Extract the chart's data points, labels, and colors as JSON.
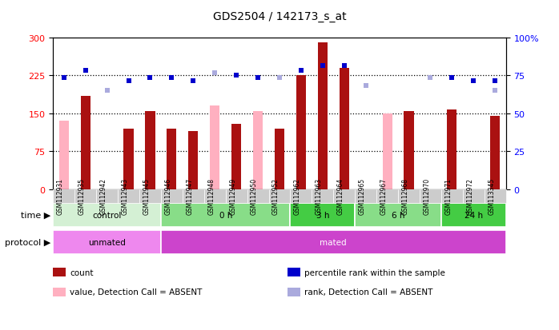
{
  "title": "GDS2504 / 142173_s_at",
  "samples": [
    "GSM112931",
    "GSM112935",
    "GSM112942",
    "GSM112943",
    "GSM112945",
    "GSM112946",
    "GSM112947",
    "GSM112948",
    "GSM112949",
    "GSM112950",
    "GSM112952",
    "GSM112962",
    "GSM112963",
    "GSM112964",
    "GSM112965",
    "GSM112967",
    "GSM112968",
    "GSM112970",
    "GSM112971",
    "GSM112972",
    "GSM113345"
  ],
  "count_vals": [
    null,
    185,
    null,
    120,
    155,
    120,
    115,
    null,
    130,
    null,
    120,
    225,
    290,
    240,
    null,
    null,
    155,
    null,
    158,
    null,
    145
  ],
  "count_absent_vals": [
    135,
    null,
    null,
    null,
    null,
    null,
    null,
    165,
    null,
    155,
    null,
    null,
    null,
    null,
    null,
    150,
    null,
    null,
    null,
    null,
    null
  ],
  "pct_rank_vals": [
    220,
    235,
    null,
    215,
    220,
    220,
    215,
    null,
    225,
    220,
    null,
    235,
    245,
    245,
    null,
    null,
    null,
    null,
    220,
    215,
    215
  ],
  "rank_absent_vals": [
    null,
    null,
    195,
    null,
    null,
    null,
    null,
    230,
    null,
    null,
    220,
    null,
    null,
    null,
    205,
    null,
    null,
    220,
    null,
    null,
    195
  ],
  "ylim": [
    0,
    300
  ],
  "yticks_left": [
    0,
    75,
    150,
    225,
    300
  ],
  "yticks_right": [
    0,
    25,
    50,
    75,
    100
  ],
  "hlines": [
    75,
    150,
    225
  ],
  "time_groups": [
    {
      "label": "control",
      "start": 0,
      "end": 5,
      "color": "#d4f0d4"
    },
    {
      "label": "0 h",
      "start": 5,
      "end": 11,
      "color": "#88dd88"
    },
    {
      "label": "3 h",
      "start": 11,
      "end": 14,
      "color": "#44cc44"
    },
    {
      "label": "6 h",
      "start": 14,
      "end": 18,
      "color": "#88dd88"
    },
    {
      "label": "24 h",
      "start": 18,
      "end": 21,
      "color": "#44cc44"
    }
  ],
  "proto_groups": [
    {
      "label": "unmated",
      "start": 0,
      "end": 5,
      "color": "#ee88ee"
    },
    {
      "label": "mated",
      "start": 5,
      "end": 21,
      "color": "#cc44cc"
    }
  ],
  "count_color": "#aa1111",
  "count_absent_color": "#ffb0c0",
  "pct_color": "#0000cc",
  "rank_absent_color": "#aaaadd",
  "bar_width": 0.45,
  "legend": [
    {
      "label": "count",
      "color": "#aa1111"
    },
    {
      "label": "percentile rank within the sample",
      "color": "#0000cc"
    },
    {
      "label": "value, Detection Call = ABSENT",
      "color": "#ffb0c0"
    },
    {
      "label": "rank, Detection Call = ABSENT",
      "color": "#aaaadd"
    }
  ]
}
